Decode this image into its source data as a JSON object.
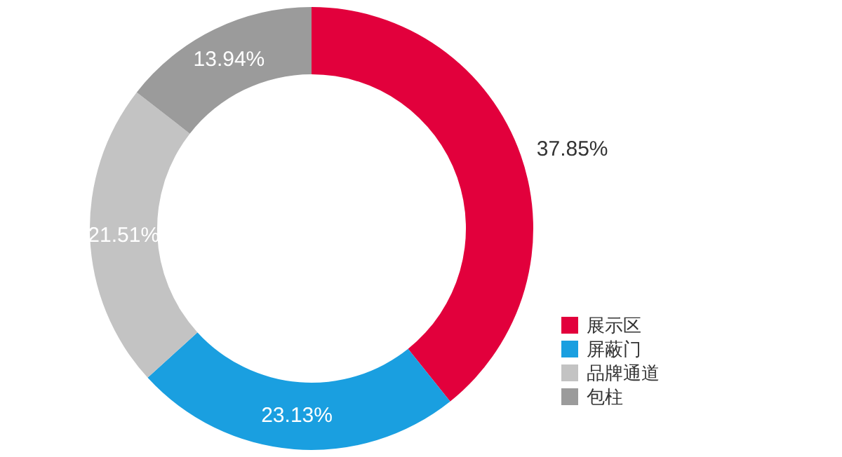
{
  "chart_data": {
    "type": "donut",
    "categories": [
      "展示区",
      "屏蔽门",
      "品牌通道",
      "包柱"
    ],
    "values": [
      37.85,
      23.13,
      21.51,
      13.94
    ],
    "colors": [
      "#e2003c",
      "#1a9fe0",
      "#c3c3c3",
      "#9b9b9b"
    ],
    "data_labels": true,
    "value_labels": [
      "37.85%",
      "23.13%",
      "21.51%",
      "13.94%"
    ],
    "legend": "bottom right"
  }
}
